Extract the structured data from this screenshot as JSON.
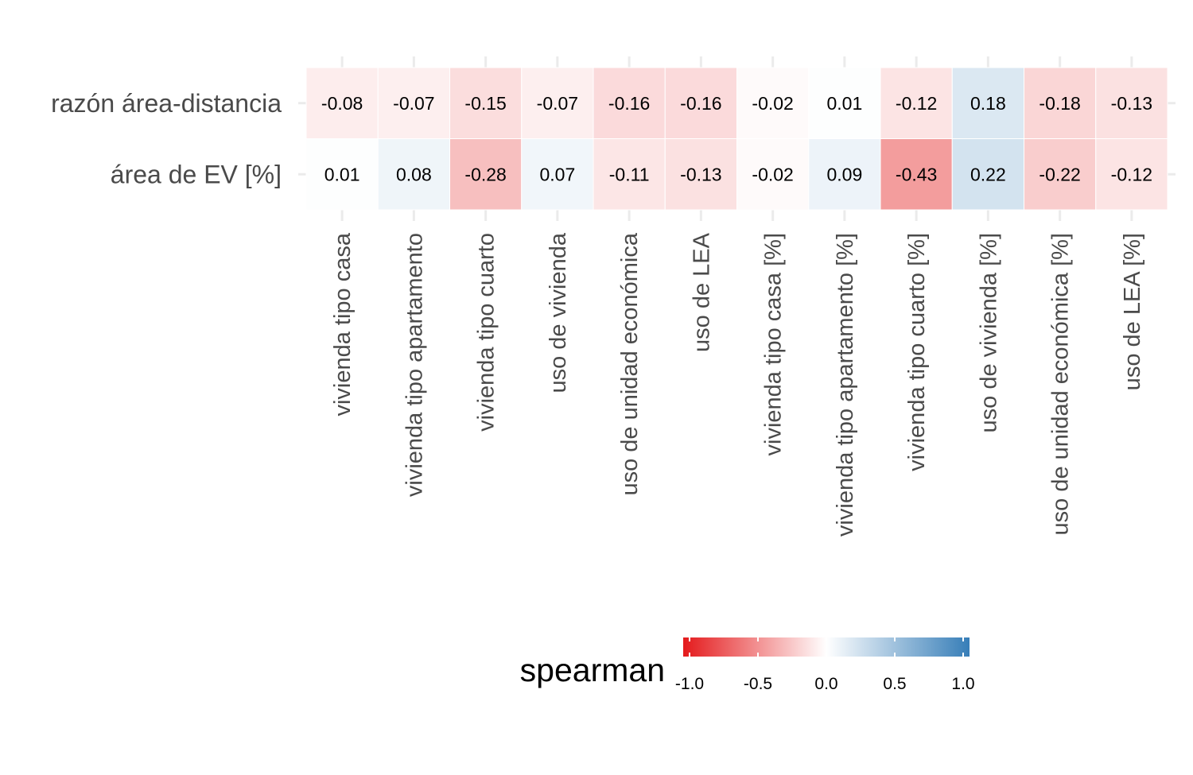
{
  "chart_data": {
    "type": "heatmap",
    "rows": [
      "razón área-distancia",
      "área de EV [%]"
    ],
    "columns": [
      "vivienda tipo casa",
      "vivienda tipo apartamento",
      "vivienda tipo cuarto",
      "uso de vivienda",
      "uso de unidad económica",
      "uso de LEA",
      "vivienda tipo casa [%]",
      "vivienda tipo apartamento [%]",
      "vivienda tipo cuarto [%]",
      "uso de vivienda [%]",
      "uso de unidad económica [%]",
      "uso de LEA [%]"
    ],
    "values": [
      [
        -0.08,
        -0.07,
        -0.15,
        -0.07,
        -0.16,
        -0.16,
        -0.02,
        0.01,
        -0.12,
        0.18,
        -0.18,
        -0.13
      ],
      [
        0.01,
        0.08,
        -0.28,
        0.07,
        -0.11,
        -0.13,
        -0.02,
        0.09,
        -0.43,
        0.22,
        -0.22,
        -0.12
      ]
    ],
    "value_labels": [
      [
        "-0.08",
        "-0.07",
        "-0.15",
        "-0.07",
        "-0.16",
        "-0.16",
        "-0.02",
        "0.01",
        "-0.12",
        "0.18",
        "-0.18",
        "-0.13"
      ],
      [
        "0.01",
        "0.08",
        "-0.28",
        "0.07",
        "-0.11",
        "-0.13",
        "-0.02",
        "0.09",
        "-0.43",
        "0.22",
        "-0.22",
        "-0.12"
      ]
    ],
    "color_scale": {
      "title": "spearman",
      "domain": [
        -1.0,
        1.0
      ],
      "low_color": "#e41a1c",
      "mid_color": "#ffffff",
      "high_color": "#377eb8",
      "ticks": [
        -1.0,
        -0.5,
        0.0,
        0.5,
        1.0
      ],
      "tick_labels": [
        "-1.0",
        "-0.5",
        "0.0",
        "0.5",
        "1.0"
      ]
    },
    "grid": true,
    "legend_position": "bottom"
  }
}
